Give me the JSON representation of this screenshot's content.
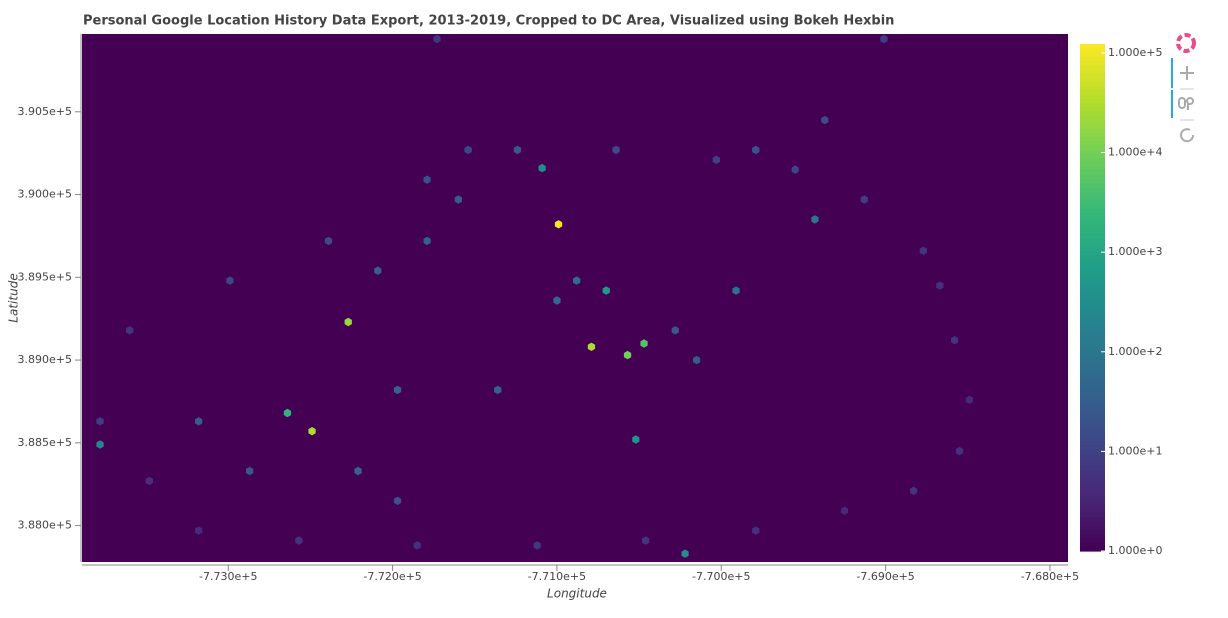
{
  "chart_data": {
    "type": "hexbin",
    "title": "Personal Google Location History Data Export, 2013-2019, Cropped to DC Area, Visualized using Bokeh Hexbin",
    "x_label": "Longitude",
    "y_label": "Latitude",
    "xlim": [
      -773890,
      -767890
    ],
    "ylim": [
      387780,
      390970
    ],
    "xticks": [
      {
        "value": -773000,
        "label": "-7.730e+5"
      },
      {
        "value": -772000,
        "label": "-7.720e+5"
      },
      {
        "value": -771000,
        "label": "-7.710e+5"
      },
      {
        "value": -770000,
        "label": "-7.700e+5"
      },
      {
        "value": -769000,
        "label": "-7.690e+5"
      },
      {
        "value": -768000,
        "label": "-7.680e+5"
      }
    ],
    "yticks": [
      {
        "value": 388000,
        "label": "3.880e+5"
      },
      {
        "value": 388500,
        "label": "3.885e+5"
      },
      {
        "value": 389000,
        "label": "3.890e+5"
      },
      {
        "value": 389500,
        "label": "3.895e+5"
      },
      {
        "value": 390000,
        "label": "3.900e+5"
      },
      {
        "value": 390500,
        "label": "3.905e+5"
      }
    ],
    "background": "#440154",
    "colormap": [
      "#440154",
      "#482878",
      "#3e4989",
      "#31688e",
      "#26828e",
      "#1f9e89",
      "#35b779",
      "#6ece58",
      "#b5de2b",
      "#fde725"
    ],
    "color_scale": "log",
    "clim": [
      1,
      123000
    ],
    "colorbar_ticks": [
      {
        "value": 1,
        "label": "1.000e+0"
      },
      {
        "value": 10,
        "label": "1.000e+1"
      },
      {
        "value": 100,
        "label": "1.000e+2"
      },
      {
        "value": 1000,
        "label": "1.000e+3"
      },
      {
        "value": 10000,
        "label": "1.000e+4"
      },
      {
        "value": 100000,
        "label": "1.000e+5"
      }
    ],
    "x": [
      -768670,
      -768580,
      -768490,
      -768550,
      -768830,
      -769250,
      -769790,
      -770460,
      -771120,
      -771850,
      -772570,
      -773180,
      -773480,
      -773780,
      -773600,
      -772990,
      -772390,
      -771790,
      -771240,
      -770640,
      -770030,
      -769550,
      -769130,
      -768770,
      -769010,
      -769370,
      -769790,
      -771730,
      -771540,
      -771600,
      -771790,
      -772090,
      -770280,
      -770150,
      -771970,
      -771360,
      -773180,
      -772870,
      -772210,
      -771970,
      -770880,
      -771000,
      -770990,
      -770790,
      -770570,
      -772270,
      -772490,
      -772640,
      -770470,
      -771090,
      -769430,
      -773780,
      -770220,
      -769910,
      -770700,
      -770520
    ],
    "y": [
      389450,
      389120,
      388760,
      388450,
      388210,
      388090,
      387970,
      387910,
      387880,
      387880,
      387910,
      387970,
      388270,
      388630,
      389180,
      389480,
      389720,
      390090,
      390270,
      390270,
      390210,
      390150,
      389970,
      389660,
      390940,
      390450,
      390270,
      390940,
      390270,
      389970,
      389720,
      389540,
      389180,
      389000,
      388820,
      388820,
      388630,
      388330,
      388330,
      388150,
      389480,
      389360,
      389820,
      389080,
      389030,
      389230,
      388570,
      388680,
      389100,
      390160,
      389850,
      388490,
      387830,
      389420,
      389420,
      388520
    ],
    "values": [
      5,
      6,
      4,
      5,
      6,
      4,
      5,
      6,
      7,
      5,
      6,
      4,
      5,
      8,
      6,
      12,
      15,
      20,
      25,
      15,
      10,
      12,
      8,
      6,
      8,
      15,
      20,
      6,
      12,
      30,
      40,
      35,
      25,
      30,
      40,
      35,
      30,
      25,
      40,
      20,
      60,
      50,
      100000,
      30000,
      10000,
      20000,
      30000,
      2000,
      5000,
      300,
      100,
      200,
      300,
      80,
      500,
      400
    ]
  }
}
